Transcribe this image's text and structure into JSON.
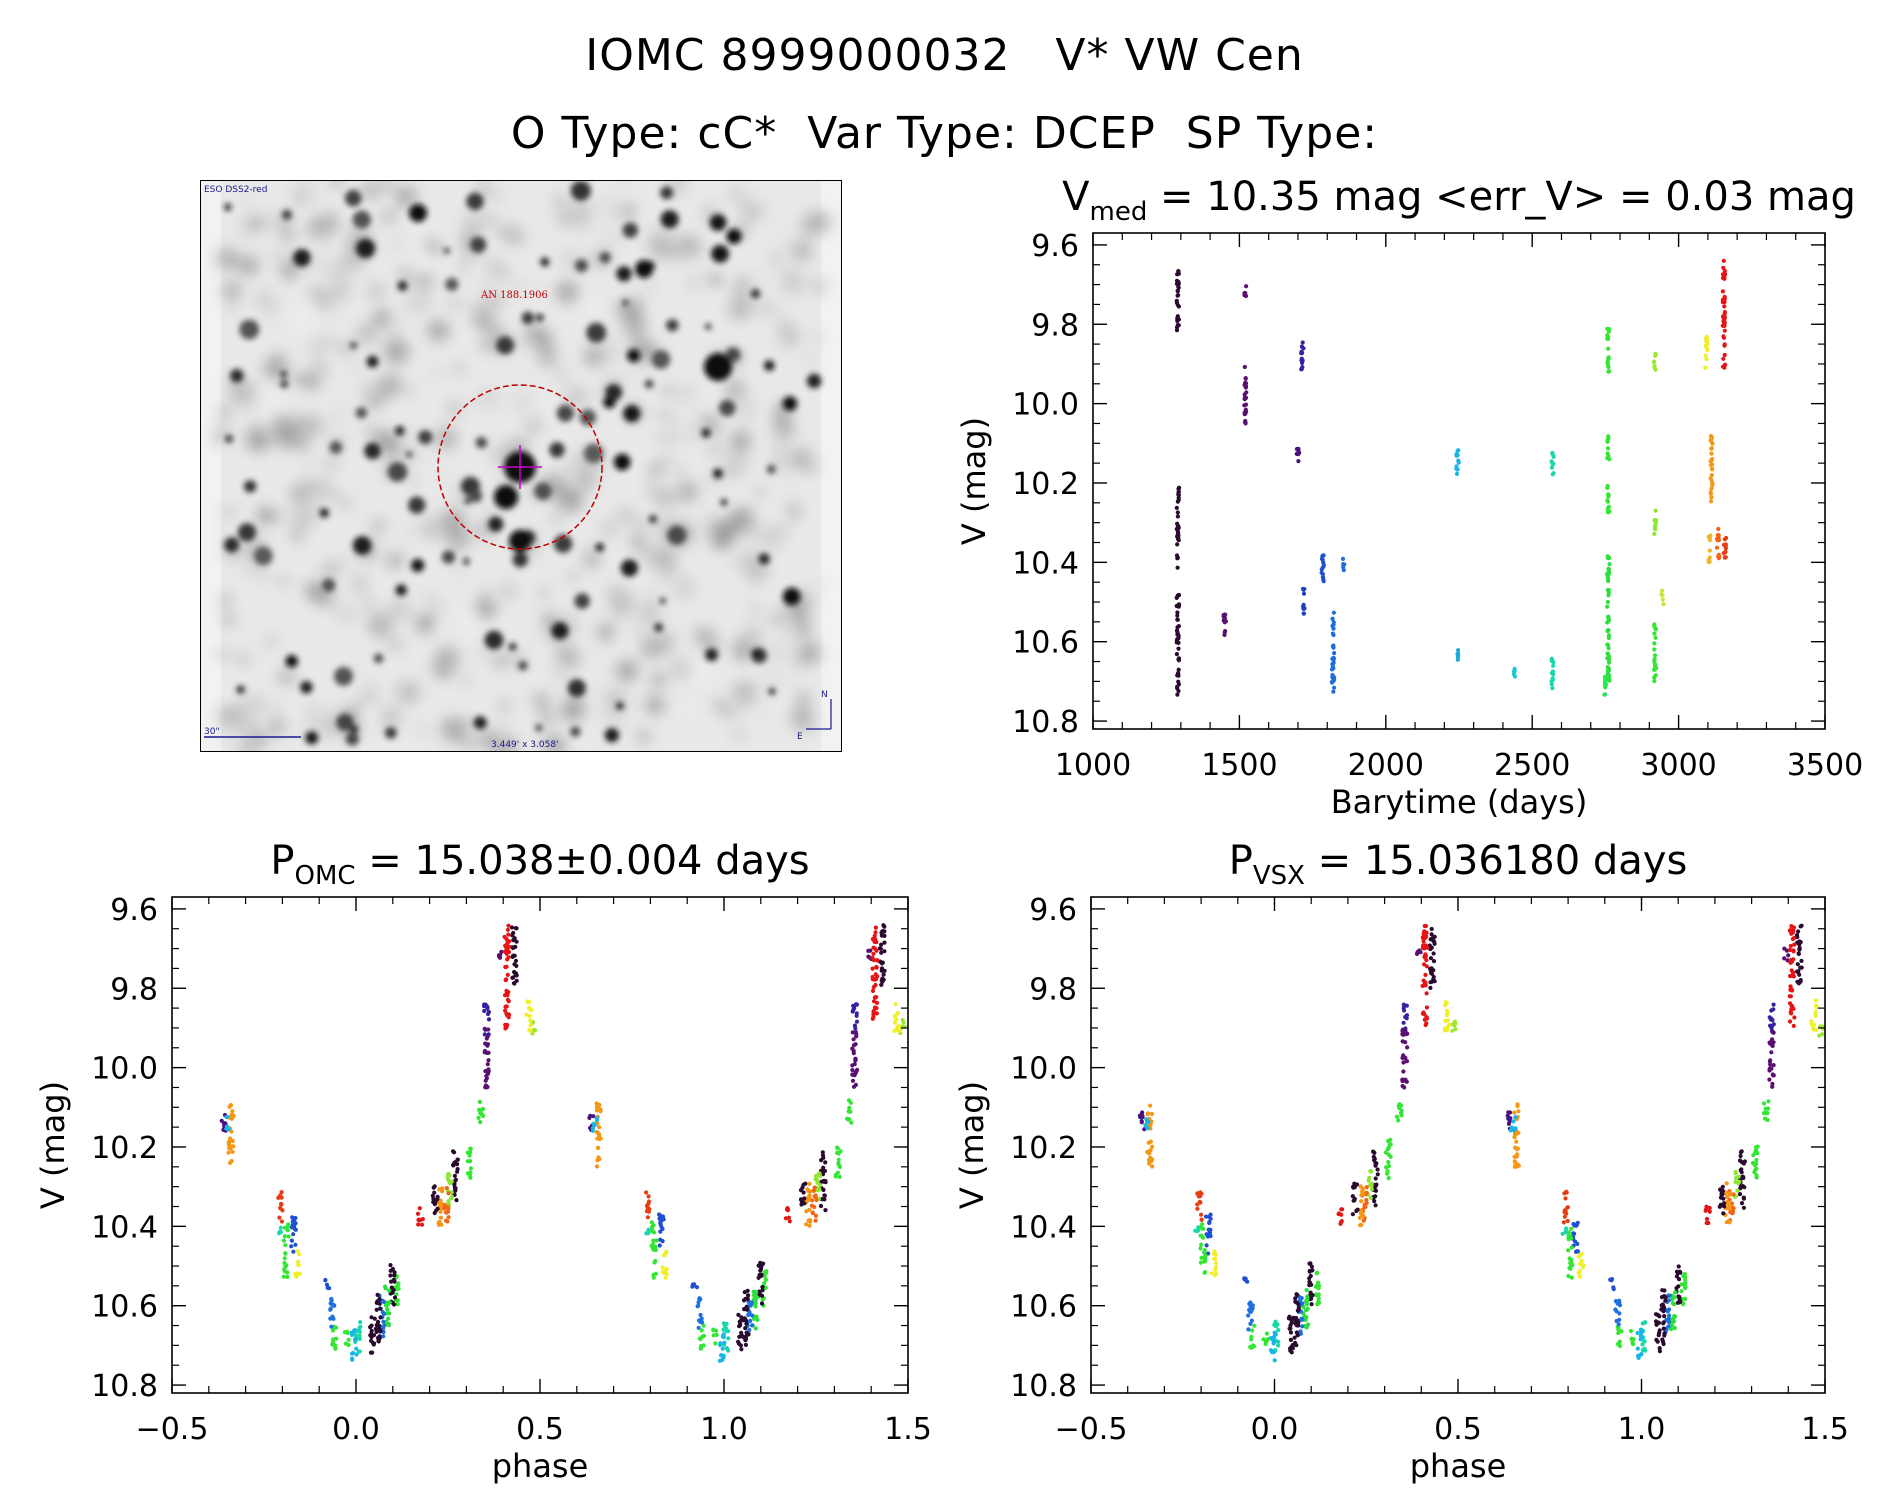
{
  "header": {
    "title_line1": "IOMC 8999000032   V* VW Cen",
    "title_line2": "O Type: cC*  Var Type: DCEP  SP Type:"
  },
  "finder": {
    "survey_label": "ESO DSS2-red",
    "target_label": "AN 188.1906",
    "scale_label": "30\"",
    "fov_label": "3.449' x 3.058'",
    "north_label": "N",
    "east_label": "E",
    "circle_color": "#c00000",
    "cross_color": "#cc00cc",
    "annot_color": "#1a1a8c"
  },
  "chart_data": [
    {
      "id": "timeseries",
      "type": "scatter",
      "title_parts": [
        {
          "t": "V",
          "sub": false
        },
        {
          "t": "med",
          "sub": true
        },
        {
          "t": " = 10.35 mag <err_V> = 0.03 mag",
          "sub": false
        }
      ],
      "xlabel": "Barytime (days)",
      "ylabel": "V (mag)",
      "xlim": [
        1000,
        3500
      ],
      "ylim": [
        10.82,
        9.57
      ],
      "xticks": [
        1000,
        1500,
        2000,
        2500,
        3000,
        3500
      ],
      "xtick_labels": [
        "1000",
        "1500",
        "2000",
        "2500",
        "3000",
        "3500"
      ],
      "yticks": [
        9.6,
        9.8,
        10.0,
        10.2,
        10.4,
        10.6,
        10.8
      ],
      "ytick_labels": [
        "9.6",
        "9.8",
        "10.0",
        "10.2",
        "10.4",
        "10.6",
        "10.8"
      ],
      "colorscale": "time (dark purple = earliest, red = latest)",
      "groups": [
        {
          "x": 1290,
          "ymin": 9.65,
          "ymax": 9.82,
          "color": "#2a0a2e"
        },
        {
          "x": 1290,
          "ymin": 10.21,
          "ymax": 10.42,
          "color": "#2a0a2e"
        },
        {
          "x": 1290,
          "ymin": 10.48,
          "ymax": 10.74,
          "color": "#2a0a2e"
        },
        {
          "x": 1450,
          "ymin": 10.53,
          "ymax": 10.6,
          "color": "#5a1070"
        },
        {
          "x": 1520,
          "ymin": 9.7,
          "ymax": 9.73,
          "color": "#5a1070"
        },
        {
          "x": 1520,
          "ymin": 9.9,
          "ymax": 10.05,
          "color": "#5a1070"
        },
        {
          "x": 1700,
          "ymin": 10.11,
          "ymax": 10.16,
          "color": "#4a1080"
        },
        {
          "x": 1715,
          "ymin": 9.84,
          "ymax": 9.92,
          "color": "#3a20a0"
        },
        {
          "x": 1720,
          "ymin": 10.46,
          "ymax": 10.53,
          "color": "#2040c0"
        },
        {
          "x": 1785,
          "ymin": 10.37,
          "ymax": 10.47,
          "color": "#2050d0"
        },
        {
          "x": 1820,
          "ymin": 10.52,
          "ymax": 10.73,
          "color": "#1e6ee0"
        },
        {
          "x": 1855,
          "ymin": 10.39,
          "ymax": 10.42,
          "color": "#1e70e0"
        },
        {
          "x": 2245,
          "ymin": 10.11,
          "ymax": 10.18,
          "color": "#19b5e6"
        },
        {
          "x": 2245,
          "ymin": 10.62,
          "ymax": 10.66,
          "color": "#19a8dc"
        },
        {
          "x": 2440,
          "ymin": 10.66,
          "ymax": 10.69,
          "color": "#19c8d2"
        },
        {
          "x": 2570,
          "ymin": 10.12,
          "ymax": 10.18,
          "color": "#19d7aa"
        },
        {
          "x": 2570,
          "ymin": 10.64,
          "ymax": 10.72,
          "color": "#19d7aa"
        },
        {
          "x": 2750,
          "ymin": 10.68,
          "ymax": 10.74,
          "color": "#28e650"
        },
        {
          "x": 2760,
          "ymin": 9.81,
          "ymax": 9.92,
          "color": "#32e632"
        },
        {
          "x": 2760,
          "ymin": 10.08,
          "ymax": 10.14,
          "color": "#32e632"
        },
        {
          "x": 2760,
          "ymin": 10.2,
          "ymax": 10.28,
          "color": "#32e632"
        },
        {
          "x": 2760,
          "ymin": 10.38,
          "ymax": 10.7,
          "color": "#2ae03c"
        },
        {
          "x": 2920,
          "ymin": 9.87,
          "ymax": 9.92,
          "color": "#a0e632"
        },
        {
          "x": 2920,
          "ymin": 10.26,
          "ymax": 10.33,
          "color": "#8ce632"
        },
        {
          "x": 2920,
          "ymin": 10.55,
          "ymax": 10.7,
          "color": "#32e632"
        },
        {
          "x": 2945,
          "ymin": 10.47,
          "ymax": 10.51,
          "color": "#c8e632"
        },
        {
          "x": 3095,
          "ymin": 9.83,
          "ymax": 9.91,
          "color": "#f0f028"
        },
        {
          "x": 3105,
          "ymin": 10.33,
          "ymax": 10.4,
          "color": "#f0b428"
        },
        {
          "x": 3112,
          "ymin": 10.08,
          "ymax": 10.25,
          "color": "#f59614"
        },
        {
          "x": 3135,
          "ymin": 10.31,
          "ymax": 10.39,
          "color": "#f56414"
        },
        {
          "x": 3158,
          "ymin": 10.33,
          "ymax": 10.4,
          "color": "#e83c14"
        },
        {
          "x": 3155,
          "ymin": 9.64,
          "ymax": 9.91,
          "color": "#e61414"
        }
      ]
    },
    {
      "id": "phase-omc",
      "type": "scatter",
      "title_parts": [
        {
          "t": "P",
          "sub": false
        },
        {
          "t": "OMC",
          "sub": true
        },
        {
          "t": " = 15.038±0.004 days",
          "sub": false
        }
      ],
      "xlabel": "phase",
      "ylabel": "V (mag)",
      "xlim": [
        -0.5,
        1.5
      ],
      "ylim": [
        10.82,
        9.57
      ],
      "xticks": [
        -0.5,
        0.0,
        0.5,
        1.0,
        1.5
      ],
      "xtick_labels": [
        "−0.5",
        "0.0",
        "0.5",
        "1.0",
        "1.5"
      ],
      "yticks": [
        9.6,
        9.8,
        10.0,
        10.2,
        10.4,
        10.6,
        10.8
      ],
      "ytick_labels": [
        "9.6",
        "9.8",
        "10.0",
        "10.2",
        "10.4",
        "10.6",
        "10.8"
      ],
      "period_copies": [
        -1,
        0,
        1
      ],
      "groups": [
        {
          "x": 0.485,
          "ymin": 9.88,
          "ymax": 9.92,
          "color": "#a0e632"
        },
        {
          "x": 0.47,
          "ymin": 9.83,
          "ymax": 9.91,
          "color": "#f0f028"
        },
        {
          "x": 0.395,
          "ymin": 9.7,
          "ymax": 9.73,
          "color": "#5a1070"
        },
        {
          "x": 0.43,
          "ymin": 9.64,
          "ymax": 9.8,
          "color": "#2a0a2e"
        },
        {
          "x": 0.41,
          "ymin": 9.64,
          "ymax": 9.91,
          "color": "#e61414"
        },
        {
          "x": 0.355,
          "ymin": 9.84,
          "ymax": 9.92,
          "color": "#3a20a0"
        },
        {
          "x": 0.355,
          "ymin": 9.9,
          "ymax": 10.05,
          "color": "#5a1070"
        },
        {
          "x": 0.34,
          "ymin": 10.08,
          "ymax": 10.14,
          "color": "#32e632"
        },
        {
          "x": 0.31,
          "ymin": 10.2,
          "ymax": 10.28,
          "color": "#32e632"
        },
        {
          "x": 0.27,
          "ymin": 10.21,
          "ymax": 10.36,
          "color": "#2a0a2e"
        },
        {
          "x": 0.255,
          "ymin": 10.26,
          "ymax": 10.35,
          "color": "#8ce632"
        },
        {
          "x": 0.245,
          "ymin": 10.3,
          "ymax": 10.39,
          "color": "#f56414"
        },
        {
          "x": 0.23,
          "ymin": 10.29,
          "ymax": 10.4,
          "color": "#f59614"
        },
        {
          "x": 0.215,
          "ymin": 10.29,
          "ymax": 10.37,
          "color": "#2a0a2e"
        },
        {
          "x": 0.175,
          "ymin": 10.35,
          "ymax": 10.4,
          "color": "#e61414"
        },
        {
          "x": 0.11,
          "ymin": 10.51,
          "ymax": 10.6,
          "color": "#32e632"
        },
        {
          "x": 0.1,
          "ymin": 10.49,
          "ymax": 10.6,
          "color": "#2a0a2e"
        },
        {
          "x": 0.085,
          "ymin": 10.55,
          "ymax": 10.66,
          "color": "#2ae03c"
        },
        {
          "x": 0.07,
          "ymin": 10.57,
          "ymax": 10.68,
          "color": "#1e6ee0"
        },
        {
          "x": 0.06,
          "ymin": 10.56,
          "ymax": 10.7,
          "color": "#2a0a2e"
        },
        {
          "x": 0.045,
          "ymin": 10.62,
          "ymax": 10.72,
          "color": "#2a0a2e"
        },
        {
          "x": 0.005,
          "ymin": 10.64,
          "ymax": 10.72,
          "color": "#19d7aa"
        },
        {
          "x": -0.005,
          "ymin": 10.66,
          "ymax": 10.74,
          "color": "#19b5e6"
        },
        {
          "x": -0.025,
          "ymin": 10.66,
          "ymax": 10.7,
          "color": "#32e632"
        },
        {
          "x": -0.06,
          "ymin": 10.65,
          "ymax": 10.71,
          "color": "#32e632"
        },
        {
          "x": -0.065,
          "ymin": 10.58,
          "ymax": 10.66,
          "color": "#1e70e0"
        },
        {
          "x": -0.08,
          "ymin": 10.53,
          "ymax": 10.56,
          "color": "#2050d0"
        },
        {
          "x": -0.16,
          "ymin": 10.46,
          "ymax": 10.53,
          "color": "#f0f028"
        },
        {
          "x": -0.17,
          "ymin": 10.37,
          "ymax": 10.47,
          "color": "#2050d0"
        },
        {
          "x": -0.19,
          "ymin": 10.39,
          "ymax": 10.53,
          "color": "#32e632"
        },
        {
          "x": -0.205,
          "ymin": 10.4,
          "ymax": 10.42,
          "color": "#19d7aa"
        },
        {
          "x": -0.205,
          "ymin": 10.31,
          "ymax": 10.39,
          "color": "#e83c14"
        },
        {
          "x": -0.34,
          "ymin": 10.09,
          "ymax": 10.25,
          "color": "#f59614"
        },
        {
          "x": -0.36,
          "ymin": 10.11,
          "ymax": 10.16,
          "color": "#4a1080"
        },
        {
          "x": -0.35,
          "ymin": 10.12,
          "ymax": 10.16,
          "color": "#19b5e6"
        }
      ]
    },
    {
      "id": "phase-vsx",
      "type": "scatter",
      "title_parts": [
        {
          "t": "P",
          "sub": false
        },
        {
          "t": "VSX",
          "sub": true
        },
        {
          "t": " = 15.036180 days",
          "sub": false
        }
      ],
      "xlabel": "phase",
      "ylabel": "V (mag)",
      "xlim": [
        -0.5,
        1.5
      ],
      "ylim": [
        10.82,
        9.57
      ],
      "xticks": [
        -0.5,
        0.0,
        0.5,
        1.0,
        1.5
      ],
      "xtick_labels": [
        "−0.5",
        "0.0",
        "0.5",
        "1.0",
        "1.5"
      ],
      "yticks": [
        9.6,
        9.8,
        10.0,
        10.2,
        10.4,
        10.6,
        10.8
      ],
      "ytick_labels": [
        "9.6",
        "9.8",
        "10.0",
        "10.2",
        "10.4",
        "10.6",
        "10.8"
      ],
      "period_copies": [
        -1,
        0,
        1
      ],
      "groups": [
        {
          "x": 0.49,
          "ymin": 9.88,
          "ymax": 9.92,
          "color": "#a0e632"
        },
        {
          "x": 0.47,
          "ymin": 9.83,
          "ymax": 9.91,
          "color": "#f0f028"
        },
        {
          "x": 0.395,
          "ymin": 9.7,
          "ymax": 9.73,
          "color": "#5a1070"
        },
        {
          "x": 0.43,
          "ymin": 9.64,
          "ymax": 9.8,
          "color": "#2a0a2e"
        },
        {
          "x": 0.41,
          "ymin": 9.64,
          "ymax": 9.91,
          "color": "#e61414"
        },
        {
          "x": 0.355,
          "ymin": 9.84,
          "ymax": 9.92,
          "color": "#3a20a0"
        },
        {
          "x": 0.355,
          "ymin": 9.9,
          "ymax": 10.05,
          "color": "#5a1070"
        },
        {
          "x": 0.34,
          "ymin": 10.08,
          "ymax": 10.14,
          "color": "#32e632"
        },
        {
          "x": 0.31,
          "ymin": 10.18,
          "ymax": 10.28,
          "color": "#32e632"
        },
        {
          "x": 0.275,
          "ymin": 10.21,
          "ymax": 10.36,
          "color": "#2a0a2e"
        },
        {
          "x": 0.26,
          "ymin": 10.26,
          "ymax": 10.33,
          "color": "#8ce632"
        },
        {
          "x": 0.245,
          "ymin": 10.3,
          "ymax": 10.39,
          "color": "#f56414"
        },
        {
          "x": 0.235,
          "ymin": 10.29,
          "ymax": 10.4,
          "color": "#f59614"
        },
        {
          "x": 0.22,
          "ymin": 10.29,
          "ymax": 10.37,
          "color": "#2a0a2e"
        },
        {
          "x": 0.18,
          "ymin": 10.35,
          "ymax": 10.4,
          "color": "#e61414"
        },
        {
          "x": 0.115,
          "ymin": 10.51,
          "ymax": 10.6,
          "color": "#32e632"
        },
        {
          "x": 0.1,
          "ymin": 10.49,
          "ymax": 10.6,
          "color": "#2a0a2e"
        },
        {
          "x": 0.085,
          "ymin": 10.55,
          "ymax": 10.66,
          "color": "#2ae03c"
        },
        {
          "x": 0.07,
          "ymin": 10.57,
          "ymax": 10.68,
          "color": "#1e6ee0"
        },
        {
          "x": 0.06,
          "ymin": 10.56,
          "ymax": 10.7,
          "color": "#2a0a2e"
        },
        {
          "x": 0.045,
          "ymin": 10.62,
          "ymax": 10.72,
          "color": "#2a0a2e"
        },
        {
          "x": 0.005,
          "ymin": 10.64,
          "ymax": 10.72,
          "color": "#19d7aa"
        },
        {
          "x": -0.005,
          "ymin": 10.66,
          "ymax": 10.74,
          "color": "#19b5e6"
        },
        {
          "x": -0.025,
          "ymin": 10.66,
          "ymax": 10.7,
          "color": "#32e632"
        },
        {
          "x": -0.06,
          "ymin": 10.65,
          "ymax": 10.71,
          "color": "#32e632"
        },
        {
          "x": -0.065,
          "ymin": 10.58,
          "ymax": 10.66,
          "color": "#1e70e0"
        },
        {
          "x": -0.08,
          "ymin": 10.53,
          "ymax": 10.56,
          "color": "#2050d0"
        },
        {
          "x": -0.165,
          "ymin": 10.46,
          "ymax": 10.53,
          "color": "#f0f028"
        },
        {
          "x": -0.18,
          "ymin": 10.37,
          "ymax": 10.47,
          "color": "#2050d0"
        },
        {
          "x": -0.195,
          "ymin": 10.39,
          "ymax": 10.53,
          "color": "#32e632"
        },
        {
          "x": -0.21,
          "ymin": 10.4,
          "ymax": 10.42,
          "color": "#19d7aa"
        },
        {
          "x": -0.205,
          "ymin": 10.31,
          "ymax": 10.39,
          "color": "#e83c14"
        },
        {
          "x": -0.34,
          "ymin": 10.09,
          "ymax": 10.25,
          "color": "#f59614"
        },
        {
          "x": -0.36,
          "ymin": 10.11,
          "ymax": 10.16,
          "color": "#4a1080"
        },
        {
          "x": -0.35,
          "ymin": 10.12,
          "ymax": 10.16,
          "color": "#19b5e6"
        }
      ]
    }
  ]
}
